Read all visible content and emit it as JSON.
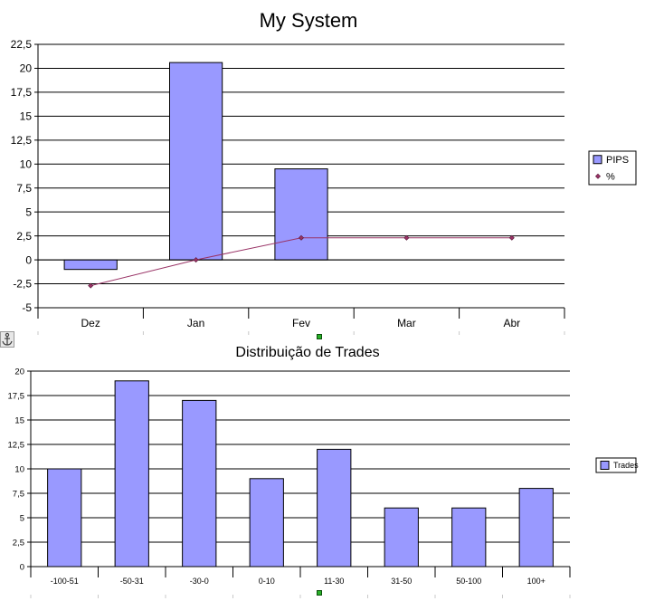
{
  "anchor_icon": "anchor-icon",
  "chart_data": [
    {
      "type": "bar",
      "title": "My System",
      "categories": [
        "Dez",
        "Jan",
        "Fev",
        "Mar",
        "Abr"
      ],
      "series": [
        {
          "name": "PIPS",
          "type": "bar",
          "values": [
            -1,
            20.6,
            9.5,
            null,
            null
          ],
          "color": "#9999ff"
        },
        {
          "name": "%",
          "type": "line",
          "values": [
            -2.7,
            0,
            2.3,
            2.3,
            2.3
          ],
          "color": "#993366"
        }
      ],
      "ylim": [
        -5,
        22.5
      ],
      "yticks": [
        -5,
        -2.5,
        0,
        2.5,
        5,
        7.5,
        10,
        12.5,
        15,
        17.5,
        20,
        22.5
      ],
      "ytick_labels": [
        "-5",
        "-2,5",
        "0",
        "2,5",
        "5",
        "7,5",
        "10",
        "12,5",
        "15",
        "17,5",
        "20",
        "22,5"
      ],
      "grid": true,
      "legend": "right"
    },
    {
      "type": "bar",
      "title": "Distribuição de Trades",
      "categories": [
        "-100-51",
        "-50-31",
        "-30-0",
        "0-10",
        "11-30",
        "31-50",
        "50-100",
        "100+"
      ],
      "series": [
        {
          "name": "Trades",
          "values": [
            10,
            19,
            17,
            9,
            12,
            6,
            6,
            8
          ],
          "color": "#9999ff"
        }
      ],
      "ylim": [
        0,
        20
      ],
      "yticks": [
        0,
        2.5,
        5,
        7.5,
        10,
        12.5,
        15,
        17.5,
        20
      ],
      "ytick_labels": [
        "0",
        "2,5",
        "5",
        "7,5",
        "10",
        "12,5",
        "15",
        "17,5",
        "20"
      ],
      "grid": true,
      "legend": "right"
    }
  ]
}
